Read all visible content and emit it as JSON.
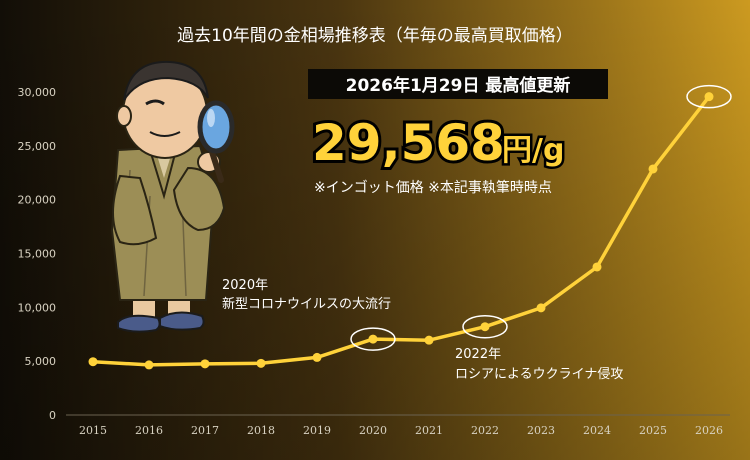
{
  "chart_data": {
    "type": "line",
    "title": "過去10年間の金相場推移表（年毎の最高買取価格）",
    "categories": [
      "2015",
      "2016",
      "2017",
      "2018",
      "2019",
      "2020",
      "2021",
      "2022",
      "2023",
      "2024",
      "2025",
      "2026"
    ],
    "series": [
      {
        "values": [
          4950,
          4650,
          4750,
          4800,
          5350,
          7050,
          6950,
          8200,
          9950,
          13750,
          22850,
          29568
        ]
      }
    ],
    "ylim": [
      0,
      30000
    ],
    "y_ticks": [
      "0",
      "5,000",
      "10,000",
      "15,000",
      "20,000",
      "25,000",
      "30,000"
    ],
    "grid": false,
    "annotations": [
      {
        "line1": "2020年",
        "line2": "新型コロナウイルスの大流行",
        "year": "2020"
      },
      {
        "line1": "2022年",
        "line2": "ロシアによるウクライナ侵攻",
        "year": "2022"
      }
    ],
    "highlight": {
      "date_label": "2026年1月29日 最高値更新",
      "price": "29,568",
      "unit": "円/g",
      "note": "※インゴット価格 ※本記事執筆時時点",
      "year": "2026"
    }
  },
  "colors": {
    "line": "#FFD23A",
    "bg_dark": "#141008",
    "bg_gold": "#C7961E",
    "text": "#FFFFFF",
    "axis_text": "#D8D2C2"
  }
}
